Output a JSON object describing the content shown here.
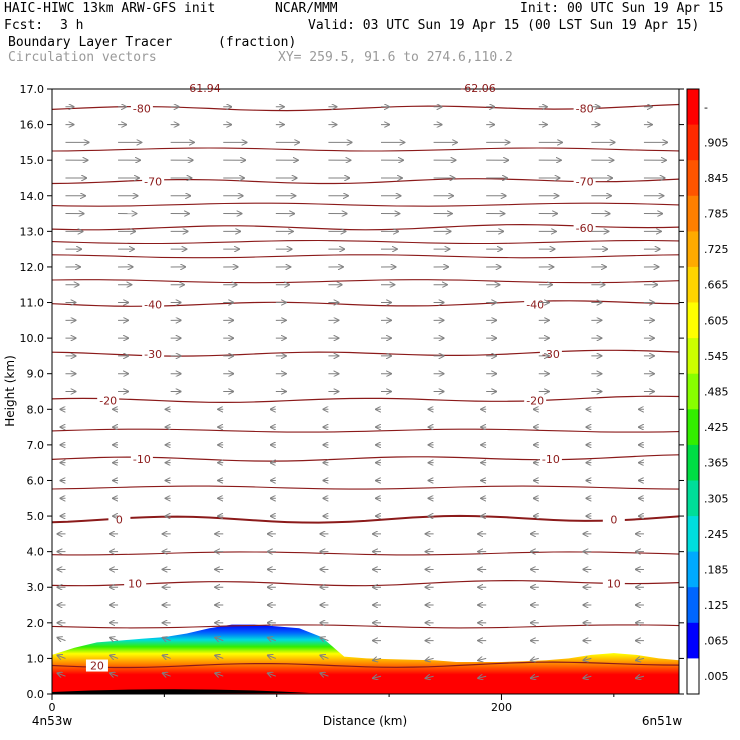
{
  "header": {
    "model": "HAIC-HIWC 13km ARW-GFS init",
    "org": "NCAR/MMM",
    "init": "Init: 00 UTC Sun 19 Apr 15",
    "fcst_label": "Fcst:",
    "fcst_value": "3 h",
    "valid": "Valid: 03 UTC Sun 19 Apr 15 (00 LST Sun 19 Apr 15)",
    "field1_name": "Boundary Layer Tracer",
    "field1_units": "(fraction)",
    "field2_name": "Circulation vectors",
    "xy_range": "XY= 259.5, 91.6 to 274.6,110.2"
  },
  "colors": {
    "contour": "#8b1a1a",
    "vector": "#808080"
  },
  "chart_data": {
    "type": "heatmap",
    "xlabel": "Distance (km)",
    "ylabel": "Height (km)",
    "xlim": [
      0,
      279
    ],
    "ylim": [
      0,
      17
    ],
    "x_ticks": [
      0,
      200
    ],
    "x_tick_labels": [
      "0",
      "200"
    ],
    "x_end_labels": [
      "4n53w",
      "6n51w"
    ],
    "y_ticks": [
      0.0,
      1.0,
      2.0,
      3.0,
      4.0,
      5.0,
      6.0,
      7.0,
      8.0,
      9.0,
      10.0,
      11.0,
      12.0,
      13.0,
      14.0,
      15.0,
      16.0,
      17.0
    ],
    "y_tick_labels": [
      "0.0",
      "1.0",
      "2.0",
      "3.0",
      "4.0",
      "5.0",
      "6.0",
      "7.0",
      "8.0",
      "9.0",
      "10.0",
      "11.0",
      "12.0",
      "13.0",
      "14.0",
      "15.0",
      "16.0",
      "17.0"
    ],
    "colorbar": {
      "labels": [
        "-",
        ".905",
        ".845",
        ".785",
        ".725",
        ".665",
        ".605",
        ".545",
        ".485",
        ".425",
        ".365",
        ".305",
        ".245",
        ".185",
        ".125",
        ".065",
        ".005"
      ],
      "colors": [
        "#ff0000",
        "#ff2a00",
        "#ff5500",
        "#ff7f00",
        "#ffaa00",
        "#ffd400",
        "#ffff00",
        "#ccff00",
        "#88ff00",
        "#33ee00",
        "#00dd44",
        "#00dd99",
        "#00dddd",
        "#00aaff",
        "#0066ff",
        "#0000ff",
        "#ffffff"
      ]
    },
    "tracer_top_profile": {
      "x": [
        0,
        10,
        20,
        30,
        40,
        50,
        60,
        70,
        80,
        90,
        100,
        110,
        120,
        130,
        140,
        150,
        160,
        170,
        180,
        190,
        200,
        210,
        220,
        230,
        240,
        250,
        260,
        270,
        279
      ],
      "height": [
        1.1,
        1.3,
        1.45,
        1.5,
        1.55,
        1.6,
        1.7,
        1.85,
        1.95,
        1.95,
        1.9,
        1.85,
        1.6,
        1.05,
        1.0,
        0.98,
        0.96,
        0.95,
        0.9,
        0.9,
        0.9,
        0.92,
        0.95,
        1.0,
        1.1,
        1.15,
        1.1,
        1.0,
        0.95
      ]
    },
    "temperature_contours": [
      {
        "label": "20",
        "height": 0.8,
        "label_x": [
          20
        ]
      },
      {
        "label": "10",
        "height": 3.1,
        "label_x": [
          37,
          250
        ]
      },
      {
        "label": "0",
        "height": 4.9,
        "label_x": [
          30,
          250
        ]
      },
      {
        "label": "-10",
        "height": 6.6,
        "label_x": [
          40,
          222
        ]
      },
      {
        "label": "-20",
        "height": 8.25,
        "label_x": [
          25,
          215
        ]
      },
      {
        "label": "-30",
        "height": 9.55,
        "label_x": [
          45,
          222
        ]
      },
      {
        "label": "-40",
        "height": 10.95,
        "label_x": [
          45,
          215
        ]
      },
      {
        "label": "-60",
        "height": 13.1,
        "label_x": [
          237
        ]
      },
      {
        "label": "-70",
        "height": 14.4,
        "label_x": [
          45,
          237
        ]
      },
      {
        "label": "-80",
        "height": 16.45,
        "label_x": [
          40,
          237
        ]
      }
    ],
    "top_labels": [
      "61.94",
      "-62.06"
    ]
  }
}
